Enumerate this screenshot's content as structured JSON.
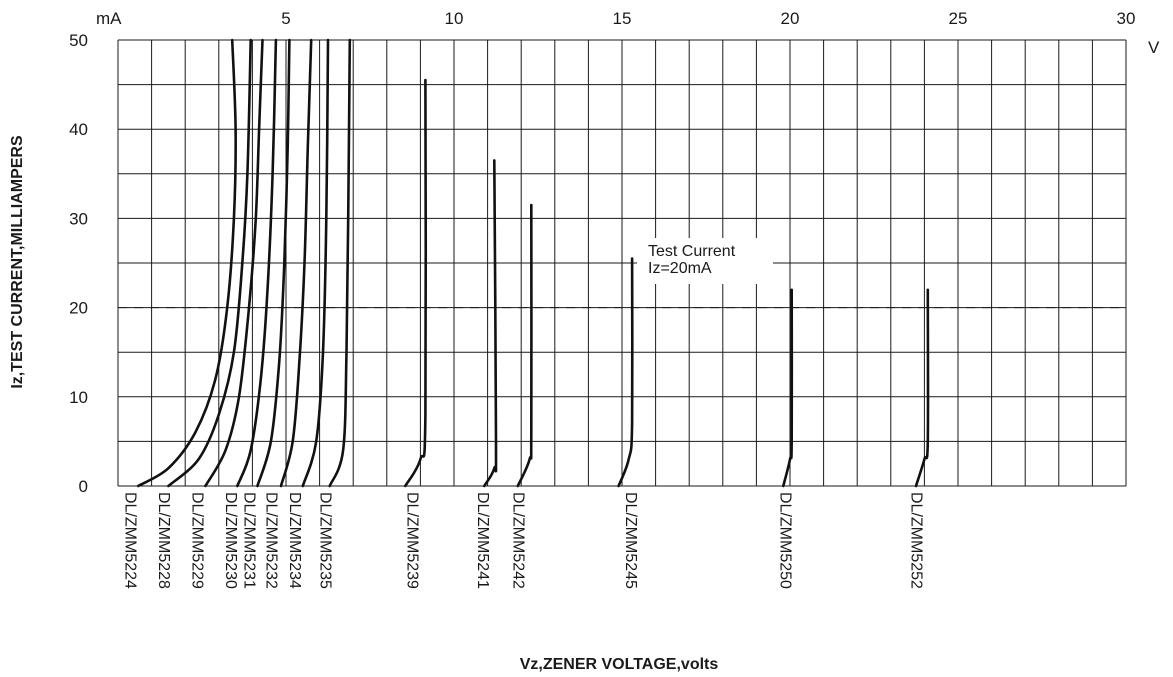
{
  "chart_data": {
    "type": "line",
    "title": "",
    "xlabel": "Vz,ZENER VOLTAGE,volts",
    "ylabel": "Iz,TEST CURRENT,MILLIAMPERS",
    "x_unit": "V",
    "y_unit": "mA",
    "xlim": [
      0,
      30
    ],
    "ylim": [
      0,
      50
    ],
    "x_ticks": [
      5,
      10,
      15,
      20,
      25,
      30
    ],
    "y_ticks": [
      0,
      10,
      20,
      30,
      40,
      50
    ],
    "grid": true,
    "annotation": {
      "lines": [
        "Test Current",
        "Iz=20mA"
      ],
      "reference_line_y": 20
    },
    "series": [
      {
        "name": "DL/ZMM5224",
        "label_x": 0.4,
        "points": [
          [
            0.6,
            0
          ],
          [
            1.5,
            2
          ],
          [
            2.3,
            6
          ],
          [
            2.9,
            12
          ],
          [
            3.25,
            20
          ],
          [
            3.45,
            30
          ],
          [
            3.5,
            40
          ],
          [
            3.4,
            50
          ]
        ]
      },
      {
        "name": "DL/ZMM5228",
        "label_x": 1.4,
        "points": [
          [
            1.5,
            0
          ],
          [
            2.4,
            3
          ],
          [
            3.0,
            8
          ],
          [
            3.45,
            15
          ],
          [
            3.7,
            25
          ],
          [
            3.85,
            35
          ],
          [
            3.95,
            50
          ]
        ]
      },
      {
        "name": "DL/ZMM5229",
        "label_x": 2.4,
        "points": [
          [
            2.6,
            0
          ],
          [
            3.2,
            4
          ],
          [
            3.6,
            10
          ],
          [
            3.9,
            20
          ],
          [
            4.1,
            30
          ],
          [
            4.2,
            40
          ],
          [
            4.3,
            50
          ]
        ]
      },
      {
        "name": "DL/ZMM5230",
        "label_x": 3.4,
        "points": [
          [
            3.55,
            0
          ],
          [
            3.95,
            4
          ],
          [
            4.25,
            12
          ],
          [
            4.45,
            22
          ],
          [
            4.6,
            35
          ],
          [
            4.7,
            50
          ]
        ]
      },
      {
        "name": "DL/ZMM5231",
        "label_x": 3.95,
        "points": [
          [
            4.15,
            0
          ],
          [
            4.55,
            5
          ],
          [
            4.8,
            14
          ],
          [
            4.95,
            25
          ],
          [
            5.05,
            38
          ],
          [
            5.1,
            50
          ]
        ]
      },
      {
        "name": "DL/ZMM5232",
        "label_x": 4.6,
        "points": [
          [
            4.85,
            0
          ],
          [
            5.2,
            5
          ],
          [
            5.4,
            14
          ],
          [
            5.55,
            25
          ],
          [
            5.65,
            38
          ],
          [
            5.75,
            50
          ]
        ]
      },
      {
        "name": "DL/ZMM5234",
        "label_x": 5.3,
        "points": [
          [
            5.5,
            0
          ],
          [
            5.9,
            5
          ],
          [
            6.1,
            15
          ],
          [
            6.2,
            30
          ],
          [
            6.25,
            50
          ]
        ]
      },
      {
        "name": "DL/ZMM5235",
        "label_x": 6.2,
        "points": [
          [
            6.3,
            0
          ],
          [
            6.7,
            4
          ],
          [
            6.8,
            15
          ],
          [
            6.85,
            30
          ],
          [
            6.9,
            50
          ]
        ]
      },
      {
        "name": "DL/ZMM5239",
        "label_x": 8.8,
        "points": [
          [
            8.55,
            0
          ],
          [
            9.0,
            3
          ],
          [
            9.15,
            8
          ],
          [
            9.15,
            45.5
          ]
        ]
      },
      {
        "name": "DL/ZMM5241",
        "label_x": 10.9,
        "points": [
          [
            10.9,
            0
          ],
          [
            11.2,
            2
          ],
          [
            11.25,
            5
          ],
          [
            11.2,
            36.5
          ]
        ]
      },
      {
        "name": "DL/ZMM5242",
        "label_x": 11.95,
        "points": [
          [
            11.9,
            0
          ],
          [
            12.25,
            3
          ],
          [
            12.3,
            6
          ],
          [
            12.3,
            31.5
          ]
        ]
      },
      {
        "name": "DL/ZMM5245",
        "label_x": 15.3,
        "points": [
          [
            14.9,
            0
          ],
          [
            15.2,
            3
          ],
          [
            15.3,
            7
          ],
          [
            15.3,
            25.5
          ]
        ]
      },
      {
        "name": "DL/ZMM5250",
        "label_x": 19.9,
        "points": [
          [
            19.8,
            0
          ],
          [
            20.0,
            3
          ],
          [
            20.05,
            5
          ],
          [
            20.05,
            22
          ]
        ]
      },
      {
        "name": "DL/ZMM5252",
        "label_x": 23.8,
        "points": [
          [
            23.75,
            0
          ],
          [
            24.0,
            3
          ],
          [
            24.1,
            5
          ],
          [
            24.1,
            22
          ]
        ]
      }
    ]
  }
}
